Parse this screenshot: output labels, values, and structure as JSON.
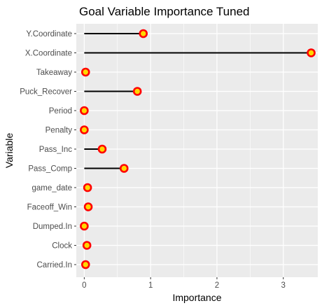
{
  "chart_data": {
    "type": "lollipop",
    "title": "Goal Variable Importance Tuned",
    "xlabel": "Importance",
    "ylabel": "Variable",
    "xlim": [
      -0.12,
      3.52
    ],
    "x_ticks": [
      0,
      1,
      2,
      3
    ],
    "grid": true,
    "categories": [
      "Y.Coordinate",
      "X.Coordinate",
      "Takeaway",
      "Puck_Recover",
      "Period",
      "Penalty",
      "Pass_Inc",
      "Pass_Comp",
      "game_date",
      "Faceoff_Win",
      "Dumped.In",
      "Clock",
      "Carried.In"
    ],
    "values": [
      0.89,
      3.42,
      0.02,
      0.8,
      0.0,
      0.0,
      0.27,
      0.6,
      0.05,
      0.06,
      0.0,
      0.04,
      0.02
    ],
    "colors": {
      "panel_bg": "#ebebeb",
      "grid": "#ffffff",
      "stem": "#000000",
      "point_fill": "#ffd700",
      "point_stroke": "#ff0000",
      "tick_text": "#4d4d4d",
      "tick_mark": "#333333"
    }
  }
}
